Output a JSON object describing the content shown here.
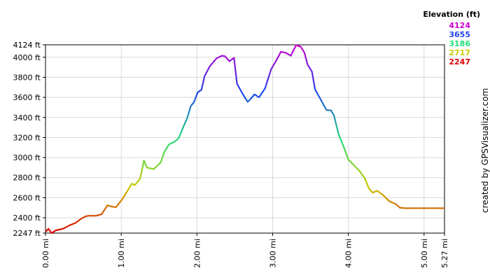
{
  "chart_data": {
    "type": "line",
    "legend_title": "Elevation (ft)",
    "side_note": "created by GPSVisualizer.com",
    "color_scale": [
      {
        "value": 4124,
        "color": "#cc00cc"
      },
      {
        "value": 3655,
        "color": "#2244ee"
      },
      {
        "value": 3186,
        "color": "#22dd77"
      },
      {
        "value": 2717,
        "color": "#cccc00"
      },
      {
        "value": 2247,
        "color": "#dd0000"
      }
    ],
    "x": [
      0,
      0.04,
      0.08,
      0.14,
      0.23,
      0.32,
      0.4,
      0.46,
      0.53,
      0.58,
      0.67,
      0.74,
      0.82,
      0.88,
      0.93,
      1.02,
      1.14,
      1.18,
      1.25,
      1.3,
      1.34,
      1.43,
      1.52,
      1.57,
      1.63,
      1.71,
      1.76,
      1.82,
      1.87,
      1.92,
      1.96,
      2.01,
      2.06,
      2.1,
      2.17,
      2.26,
      2.33,
      2.37,
      2.43,
      2.49,
      2.53,
      2.6,
      2.67,
      2.71,
      2.76,
      2.82,
      2.9,
      2.98,
      3.05,
      3.11,
      3.17,
      3.24,
      3.31,
      3.37,
      3.42,
      3.46,
      3.52,
      3.56,
      3.63,
      3.71,
      3.77,
      3.81,
      3.87,
      3.93,
      4.0,
      4.09,
      4.16,
      4.22,
      4.27,
      4.32,
      4.38,
      4.46,
      4.54,
      4.63,
      4.68,
      4.75,
      5.27
    ],
    "values": [
      2260,
      2290,
      2247,
      2275,
      2290,
      2325,
      2350,
      2385,
      2415,
      2420,
      2420,
      2435,
      2525,
      2510,
      2505,
      2590,
      2740,
      2725,
      2790,
      2970,
      2900,
      2885,
      2950,
      3055,
      3130,
      3160,
      3195,
      3305,
      3390,
      3515,
      3550,
      3650,
      3675,
      3810,
      3910,
      3990,
      4015,
      4010,
      3960,
      3995,
      3735,
      3640,
      3555,
      3585,
      3630,
      3600,
      3690,
      3880,
      3970,
      4055,
      4045,
      4015,
      4120,
      4105,
      4045,
      3930,
      3855,
      3680,
      3585,
      3475,
      3470,
      3420,
      3235,
      3125,
      2980,
      2910,
      2855,
      2790,
      2695,
      2650,
      2670,
      2625,
      2565,
      2535,
      2500,
      2495,
      2495
    ],
    "xlim": [
      0,
      5.27
    ],
    "xticks": [
      {
        "value": 0,
        "label": "0.00 mi"
      },
      {
        "value": 1,
        "label": "1.00 mi"
      },
      {
        "value": 2,
        "label": "2.00 mi"
      },
      {
        "value": 3,
        "label": "3.00 mi"
      },
      {
        "value": 4,
        "label": "4.00 mi"
      },
      {
        "value": 5,
        "label": "5.00 mi"
      },
      {
        "value": 5.27,
        "label": "5.27 mi"
      }
    ],
    "ylim": [
      2247,
      4124
    ],
    "yticks": [
      {
        "value": 2247,
        "label": "2247 ft"
      },
      {
        "value": 2400,
        "label": "2400 ft"
      },
      {
        "value": 2600,
        "label": "2600 ft"
      },
      {
        "value": 2800,
        "label": "2800 ft"
      },
      {
        "value": 3000,
        "label": "3000 ft"
      },
      {
        "value": 3200,
        "label": "3200 ft"
      },
      {
        "value": 3400,
        "label": "3400 ft"
      },
      {
        "value": 3600,
        "label": "3600 ft"
      },
      {
        "value": 3800,
        "label": "3800 ft"
      },
      {
        "value": 4000,
        "label": "4000 ft"
      },
      {
        "value": 4124,
        "label": "4124 ft"
      }
    ],
    "grid": true
  }
}
